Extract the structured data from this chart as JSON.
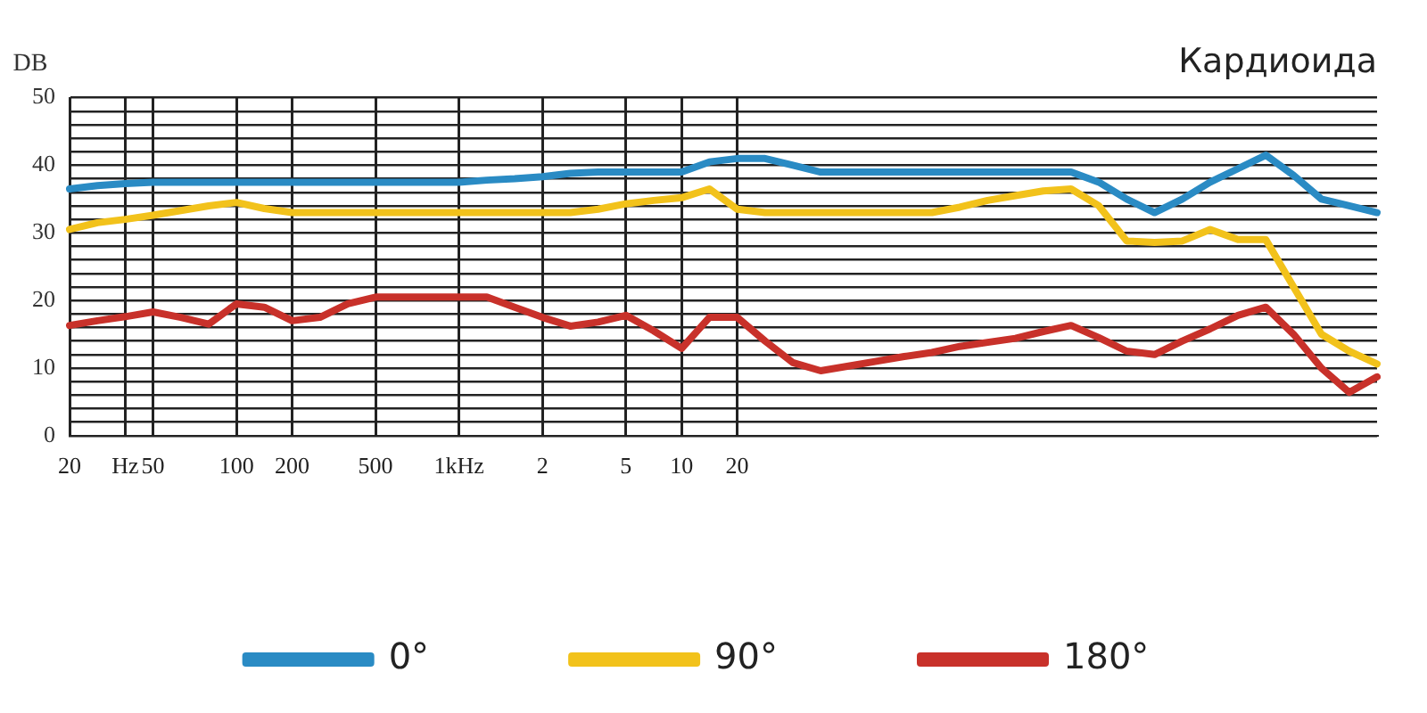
{
  "chart_data": {
    "type": "line",
    "title": "Кардиоида",
    "ylabel": "DB",
    "categories": [
      "20",
      null,
      "Hz",
      "50",
      null,
      null,
      "100",
      null,
      "200",
      null,
      null,
      "500",
      null,
      null,
      "1kHz",
      null,
      null,
      "2",
      null,
      null,
      "5",
      null,
      "10",
      null,
      "20",
      null,
      null,
      null,
      null,
      null,
      null,
      null,
      null,
      null,
      null,
      null,
      null,
      null,
      null,
      null,
      null,
      null,
      null,
      null,
      null,
      null,
      null,
      null
    ],
    "series": [
      {
        "name": "0°",
        "color": "#2a8bc4",
        "values": [
          36.5,
          37,
          37.3,
          37.5,
          37.5,
          37.5,
          37.5,
          37.5,
          37.5,
          37.5,
          37.5,
          37.5,
          37.5,
          37.5,
          37.5,
          37.8,
          38,
          38.3,
          38.8,
          39,
          39,
          39,
          39,
          40.5,
          41,
          41,
          40,
          39,
          39,
          39,
          39,
          39,
          39,
          39,
          39,
          39,
          39,
          37.5,
          35,
          33,
          35,
          37.5,
          39.5,
          41.5,
          38.5,
          35,
          34,
          33
        ]
      },
      {
        "name": "90°",
        "color": "#f2c21b",
        "values": [
          30.5,
          31.5,
          32,
          32.6,
          33.3,
          34,
          34.5,
          33.6,
          33,
          33,
          33,
          33,
          33,
          33,
          33,
          33,
          33,
          33,
          33,
          33.5,
          34.3,
          34.8,
          35.2,
          36.5,
          33.5,
          33,
          33,
          33,
          33,
          33,
          33,
          33,
          33.8,
          34.8,
          35.5,
          36.2,
          36.5,
          34,
          28.8,
          28.6,
          28.8,
          30.5,
          29,
          29,
          22,
          15,
          12.5,
          10.6
        ]
      },
      {
        "name": "180°",
        "color": "#c8312a",
        "values": [
          16.3,
          17,
          17.6,
          18.3,
          17.5,
          16.5,
          19.5,
          19,
          17,
          17.5,
          19.5,
          20.5,
          20.5,
          20.5,
          20.5,
          20.5,
          19,
          17.5,
          16.2,
          16.8,
          17.8,
          15.5,
          12.9,
          17.5,
          17.5,
          14,
          10.8,
          9.6,
          10.3,
          11,
          11.7,
          12.3,
          13.2,
          13.8,
          14.4,
          15.4,
          16.3,
          14.5,
          12.5,
          12,
          14,
          15.8,
          17.8,
          19,
          15,
          10,
          6.4,
          8.7
        ]
      }
    ],
    "ylim": [
      0,
      50
    ],
    "yticks": [
      0,
      {
        "value": 2,
        "label": null
      },
      {
        "value": 4,
        "label": null
      },
      {
        "value": 6,
        "label": null
      },
      {
        "value": 8,
        "label": null
      },
      10,
      {
        "value": 12,
        "label": null
      },
      {
        "value": 14,
        "label": null
      },
      {
        "value": 16,
        "label": null
      },
      {
        "value": 18,
        "label": null
      },
      20,
      {
        "value": 22,
        "label": null
      },
      {
        "value": 24,
        "label": null
      },
      {
        "value": 26,
        "label": null
      },
      {
        "value": 28,
        "label": null
      },
      30,
      {
        "value": 32,
        "label": null
      },
      {
        "value": 34,
        "label": null
      },
      {
        "value": 36,
        "label": null
      },
      {
        "value": 38,
        "label": null
      },
      40,
      {
        "value": 42,
        "label": null
      },
      {
        "value": 44,
        "label": null
      },
      {
        "value": 46,
        "label": null
      },
      {
        "value": 48,
        "label": null
      },
      50
    ],
    "grid": true,
    "legend": "bottom",
    "marker": "none",
    "line_style": "solid"
  }
}
